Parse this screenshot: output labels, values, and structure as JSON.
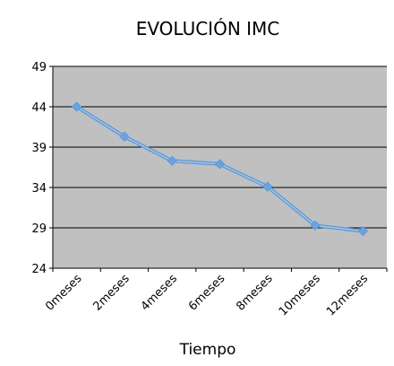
{
  "chart_data": {
    "type": "line",
    "title": "EVOLUCIÓN IMC",
    "xlabel": "Tiempo",
    "ylabel": "",
    "ylim": [
      24,
      49
    ],
    "yticks": [
      24,
      29,
      34,
      39,
      44,
      49
    ],
    "xtick_labels": [
      "0meses",
      "2meses",
      "4meses",
      "6meses",
      "8meses",
      "10meses",
      "12meses"
    ],
    "grid": "horizontal",
    "legend": "none",
    "series": [
      {
        "values": [
          44,
          40.3,
          37.3,
          36.9,
          34.1,
          29.3,
          28.6
        ]
      }
    ],
    "colors": {
      "plot_background": "#c0c0c0",
      "gridline": "#000000",
      "line": "#5b9bd5",
      "line_highlight": "#a9c8ee",
      "marker": "#6aa2e6"
    }
  }
}
